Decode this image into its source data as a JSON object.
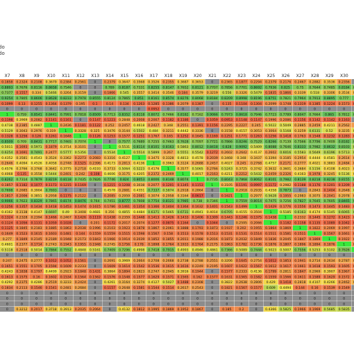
{
  "sheet": {
    "top_labels": [
      "do",
      "do"
    ]
  },
  "chart_data": {
    "type": "heatmap",
    "title": "",
    "columns": [
      "X7",
      "X8",
      "X9",
      "X10",
      "X11",
      "X12",
      "X13",
      "X14",
      "X15",
      "X16",
      "X17",
      "X18",
      "X19",
      "X20",
      "X21",
      "X22",
      "X23",
      "X24",
      "X25",
      "X26",
      "X27",
      "X28",
      "X29",
      "X30",
      "X31"
    ],
    "color_scale": {
      "high": "#63be5a",
      "mid": "#f3e04a",
      "low": "#f08a4b",
      "lowest": "#e8473e",
      "diagonal": "#39e83a",
      "na": "#8c8c8c"
    },
    "rows": [
      [
        0.1858,
        0.2324,
        0.2108,
        0.3679,
        0.2384,
        0.2561,
        0.0,
        0.2379,
        0.3647,
        0.3568,
        0.3526,
        0.2355,
        0.3687,
        0.3653,
        0.0,
        0.2365,
        0.1877,
        0.2294,
        0.2379,
        0.2176,
        0.2467,
        0.2882,
        0.3536,
        0.2356,
        0.0
      ],
      [
        0.8893,
        0.7676,
        0.8116,
        0.8658,
        0.7546,
        0.0,
        0.0,
        0.789,
        0.8187,
        0.7331,
        0.8255,
        0.8147,
        0.7652,
        0.8121,
        0.7707,
        0.7856,
        0.7701,
        0.8692,
        0.7936,
        0.825,
        0.75,
        0.7644,
        0.7485,
        0.8184,
        0.7628
      ],
      [
        0.7377,
        0.1557,
        0.334,
        0.5466,
        0.3264,
        0.3159,
        0.0,
        0.1866,
        0.545,
        0.3557,
        0.3414,
        0.3546,
        0.184,
        0.3579,
        0.3219,
        0.556,
        0.3326,
        0.5479,
        0.1835,
        0.1866,
        0.3339,
        0.518,
        0.3306,
        0.3534,
        0.3465
      ],
      [
        0.9254,
        0.7805,
        0.8606,
        0.8628,
        0.8233,
        0.7978,
        0.8555,
        0.8124,
        0.7865,
        0.851,
        0.8161,
        0.8574,
        0.8276,
        0.8068,
        0.8184,
        0.8209,
        0.8998,
        0.8196,
        0.8751,
        0.7821,
        0.7964,
        0.7913,
        0.8895,
        0.777,
        0.907
      ],
      [
        0.1099,
        0.13,
        0.1255,
        0.1364,
        0.1379,
        0.195,
        0.1,
        0.14,
        0.134,
        0.1263,
        0.1285,
        0.1386,
        0.2079,
        0.1387,
        0.0,
        0.135,
        0.1104,
        0.1304,
        0.2099,
        0.1748,
        0.1319,
        0.1385,
        0.1224,
        0.1573,
        0.1016
      ],
      [
        0.0,
        0.0,
        0.0,
        0.0,
        0.0,
        0.0,
        0.0,
        0.0,
        0.0,
        0.0,
        0.0952,
        0.0,
        0.0,
        0.0,
        0.0,
        0.0,
        0.0,
        0.0,
        0.0,
        0.0,
        0.0,
        0.0,
        0.0,
        0.0,
        0.0
      ],
      [
        1,
        0.759,
        0.8541,
        0.8441,
        0.7991,
        0.7818,
        0.8509,
        0.7713,
        0.8352,
        0.8118,
        0.8072,
        0.7466,
        0.8182,
        0.7162,
        0.9066,
        0.7973,
        0.8618,
        0.7946,
        0.7723,
        0.7789,
        0.8047,
        0.7664,
        0.865,
        0.7812,
        0.8062
      ],
      [
        0.1198,
        0.3969,
        0.2082,
        0.1141,
        0.1161,
        0.0,
        0.1147,
        0.1223,
        0.2848,
        0.2008,
        0.2007,
        0.1182,
        0.1186,
        0.0,
        0.1059,
        0.0953,
        0.1148,
        0.1147,
        0.1996,
        0.2086,
        0.1156,
        0.1142,
        0.1142,
        0.1163,
        0.0
      ],
      [
        0.4738,
        0.2385,
        0.4887,
        1,
        0.2436,
        0.1181,
        0.1122,
        0.252,
        0.2457,
        0.4618,
        0.2427,
        0.348,
        0.2551,
        0.1391,
        0.1156,
        0.2295,
        0.2227,
        0.245,
        0.5022,
        0.5049,
        0.2885,
        0.2459,
        0.4211,
        0.2562,
        0.246
      ],
      [
        0.5129,
        0.3043,
        0.2976,
        0.319,
        1,
        0.3328,
        0.325,
        0.3476,
        0.3144,
        0.5502,
        0.484,
        0.3211,
        0.4442,
        0.3336,
        0.0,
        0.3158,
        0.4157,
        0.3053,
        0.3064,
        0.5168,
        0.3259,
        0.6131,
        0.52,
        0.3235,
        0.4992
      ],
      [
        0.1328,
        0.1256,
        0.126,
        0.1261,
        0.1648,
        1,
        0.1126,
        0.1253,
        0.1577,
        0.1251,
        0.1767,
        0.165,
        0.1252,
        0.1645,
        0.1169,
        0.1251,
        0.1771,
        0.1263,
        0.1256,
        0.1418,
        0.1763,
        0.1548,
        0.1232,
        0.1283,
        0.1645
      ],
      [
        0.8509,
        0.709,
        0.8431,
        0.7717,
        0.7465,
        0.7074,
        1,
        0.0,
        0.7577,
        0.7689,
        0.7255,
        0.7463,
        0.7628,
        0.7097,
        0.7721,
        0.7866,
        0.8246,
        0.7529,
        0.8266,
        0.7139,
        0.7566,
        0.7796,
        0.7409,
        0.8182,
        0.7731
      ],
      [
        0.5011,
        0.1693,
        0.5971,
        0.1879,
        0.3714,
        0.3101,
        0.0,
        1,
        0.5531,
        0.8114,
        0.8101,
        0.8163,
        0.5863,
        0.8012,
        0.8418,
        0.828,
        0.9092,
        0.5409,
        0.8088,
        0.7646,
        0.8333,
        0.7982,
        0.8632,
        0.8103,
        0.6499
      ],
      [
        0.6254,
        0.1691,
        0.7491,
        0.2477,
        0.5777,
        0.5356,
        0.0,
        0.5534,
        1,
        0.5514,
        0.5899,
        0.267,
        0.5551,
        0.5542,
        0.1272,
        0.2602,
        0.2642,
        0.4137,
        0.2602,
        0.6016,
        0.5583,
        0.5649,
        0.6196,
        0.5713,
        0.6034
      ],
      [
        0.4352,
        0.3581,
        0.4543,
        0.3524,
        0.3362,
        0.2273,
        0.2083,
        0.3316,
        0.4127,
        1,
        0.3475,
        0.3328,
        0.4813,
        0.4578,
        0.2039,
        0.3468,
        0.348,
        0.3437,
        0.3394,
        0.3185,
        0.2954,
        0.4444,
        0.4581,
        0.2614,
        0.2635
      ],
      [
        0.2646,
        0.4094,
        0.4526,
        0.4058,
        0.2748,
        0.1525,
        0.2396,
        0.4173,
        0.2813,
        0.4136,
        1,
        0.3963,
        0.3124,
        0.2688,
        0.2457,
        0.4027,
        0.245,
        0.2768,
        0.4757,
        0.2171,
        0.2777,
        0.4021,
        0.3883,
        0.2484,
        0.2531
      ],
      [
        0.4576,
        0.3766,
        0.3768,
        0.3642,
        0.3775,
        0.2718,
        0.4193,
        0.3733,
        0.5064,
        0.5223,
        0.4176,
        1,
        0.3577,
        0.5065,
        0.2766,
        0.5243,
        0.3725,
        0.3742,
        0.3632,
        0.3601,
        0.3684,
        0.5156,
        0.4108,
        0.4023,
        0.3561
      ],
      [
        0.4068,
        0.135,
        0.3558,
        0.5444,
        0.2401,
        0.242,
        0.108,
        0.4606,
        0.3175,
        0.4205,
        0.2372,
        0.2469,
        1,
        0.4017,
        0.2163,
        0.4211,
        0.2212,
        0.5432,
        0.2459,
        0.2326,
        0.4163,
        0.1978,
        0.3245,
        0.5136,
        0.4158
      ],
      [
        0.8262,
        0.7314,
        0.7879,
        0.8219,
        0.8118,
        0.7435,
        0.7826,
        0.7746,
        0.824,
        0.8053,
        0.8006,
        0.8148,
        0.8074,
        1,
        0.7735,
        0.8043,
        0.7868,
        0.8062,
        0.8101,
        0.7982,
        0.8139,
        0.8218,
        0.8238,
        0.8155,
        0.7924
      ],
      [
        0.1857,
        0.1182,
        0.1077,
        0.1173,
        0.1215,
        0.1169,
        0.0,
        0.1215,
        0.1208,
        0.3038,
        0.2077,
        0.1201,
        0.1345,
        0.1153,
        1,
        0.3105,
        0.1191,
        0.0997,
        0.1172,
        0.2982,
        0.1188,
        0.1176,
        0.1201,
        0.1209,
        0.1225
      ],
      [
        0.7698,
        0.2685,
        0.3904,
        0.7693,
        0.0,
        0.0,
        0.0,
        0.4578,
        0.2881,
        0.4351,
        0.7337,
        0.5874,
        0.2918,
        0.2864,
        0.0,
        1,
        0.2918,
        0.2935,
        0.4358,
        0.7873,
        0.0,
        0.2843,
        0.1404,
        0.2648,
        0.5724
      ],
      [
        0.1817,
        0.2006,
        0.3851,
        0.2958,
        0.1175,
        0.2122,
        0.0,
        0.2085,
        0.2959,
        0.2081,
        0.3074,
        0.2958,
        0.3164,
        0.0617,
        0.0,
        0.1621,
        1,
        0.2977,
        0.5628,
        0.1955,
        0.2983,
        0.3075,
        0.2041,
        0.2978,
        0.2955
      ],
      [
        0.9066,
        0.7623,
        0.8329,
        0.7865,
        0.8174,
        0.8476,
        0.764,
        0.7451,
        0.8777,
        0.7608,
        0.7754,
        0.8121,
        0.7985,
        0.738,
        0.7346,
        1,
        0.7559,
        0.8014,
        0.7475,
        0.7256,
        0.7827,
        0.7645,
        0.7605,
        0.8465,
        0.8114
      ],
      [
        0.1256,
        0.1357,
        0.1434,
        0.1418,
        0.1453,
        0.1474,
        0.1615,
        0.1786,
        0.1461,
        0.1354,
        0.1366,
        0.1404,
        0.1364,
        0.1632,
        0.1401,
        0.1543,
        0.1499,
        1,
        0.1429,
        0.1776,
        0.1556,
        0.1473,
        0.1445,
        0.1483,
        0.1403
      ],
      [
        0.4162,
        0.3138,
        0.4147,
        0.6697,
        0.49,
        0.3408,
        0.4681,
        0.356,
        0.4855,
        0.4484,
        0.6371,
        0.5465,
        0.6731,
        0.4941,
        0.4014,
        0.6705,
        0.4155,
        0.3504,
        1,
        0.5185,
        0.6163,
        0.4174,
        0.5145,
        0.6065,
        0.6474
      ],
      [
        0.1324,
        0.2328,
        0.2394,
        0.1466,
        0.2467,
        0.1426,
        0.1119,
        0.1438,
        0.2359,
        0.1448,
        0.1413,
        0.1426,
        0.1433,
        0.1406,
        0.1309,
        0.1443,
        0.1246,
        0.1375,
        0.1438,
        1,
        0.2332,
        0.1445,
        0.1272,
        0.1423,
        0.1422
      ],
      [
        0.1124,
        0.1056,
        0.1131,
        0.1059,
        0.1028,
        0.0,
        0.201,
        0.1172,
        0.2017,
        0.2074,
        0.1277,
        0.0875,
        0.1164,
        0.0,
        0.1044,
        0.0,
        0.2595,
        0.2066,
        1,
        0.1182,
        0.1158,
        0.1135,
        0.1089,
        0.1042,
        0.1023
      ],
      [
        0.1125,
        0.1845,
        0.2183,
        0.1885,
        0.1863,
        0.2038,
        0.1996,
        0.2103,
        0.1923,
        0.1878,
        0.1867,
        0.2061,
        0.1888,
        0.1793,
        0.1873,
        0.1937,
        0.202,
        0.1955,
        0.1864,
        0.1869,
        1,
        0.1822,
        0.2069,
        0.1997,
        0.1974
      ],
      [
        0.1649,
        0.1523,
        0.1615,
        0.1603,
        0.1481,
        0.144,
        0.1559,
        0.1559,
        0.1515,
        0.1598,
        0.1567,
        0.158,
        0.1513,
        0.1578,
        0.1513,
        0.1531,
        0.1531,
        0.1514,
        0.1511,
        0.1581,
        0.1511,
        1,
        0.1567,
        0.1661,
        0.1548
      ],
      [
        0.277,
        0.1849,
        0.2145,
        0.2189,
        0.1948,
        0.2173,
        0.1843,
        0.1966,
        0.1914,
        0.2039,
        0.1852,
        0.1855,
        0.2011,
        0.1988,
        0.2016,
        0.1873,
        0.2032,
        0.1849,
        0.1836,
        0.2045,
        0.1847,
        0.1869,
        1,
        0.1922,
        0.2009
      ],
      [
        0.4601,
        0.2377,
        0.1714,
        0.2743,
        0.1943,
        0.1955,
        0.1948,
        0.2745,
        0.1756,
        0.178,
        0.1898,
        0.1764,
        0.1933,
        0.1764,
        0.2175,
        0.1863,
        0.1782,
        0.1736,
        0.1876,
        0.1807,
        0.1896,
        0.1894,
        0.1876,
        1,
        0.1967
      ],
      [
        0.5118,
        0.2518,
        0.5014,
        0.7864,
        0.7552,
        0.4848,
        0.5161,
        0.7409,
        0.7296,
        0.4998,
        0.7418,
        0.7915,
        0.4993,
        0.4946,
        0.4861,
        0.7366,
        0.5089,
        0.7444,
        0.5023,
        0.5007,
        0.7556,
        0.5253,
        0.5102,
        0.7626,
        1
      ],
      [
        0.0,
        0.0,
        0.0,
        0.0,
        0.0,
        0.0,
        0.0,
        0.0,
        0.0,
        0.0,
        0.0,
        0.0,
        0.0,
        0.0,
        0.0,
        0.0,
        0.0,
        0.0,
        0.0,
        0.0,
        0.0,
        0.0,
        0.0,
        0.0,
        0.0
      ],
      [
        0.247,
        0.2475,
        0.2777,
        0.1012,
        0.1052,
        0.1561,
        0.0,
        0.2691,
        0.3969,
        0.2664,
        0.2708,
        0.2668,
        0.2738,
        0.2788,
        0.2551,
        0.3206,
        0.1645,
        0.2754,
        0.1012,
        0.1853,
        0.1941,
        0.2714,
        0.2634,
        0.2787,
        0.2704
      ],
      [
        0.1651,
        0.1551,
        0.1705,
        0.1594,
        0.1609,
        0.2233,
        0.0,
        0.1609,
        0.1614,
        0.1542,
        0.1536,
        0.1615,
        0.1616,
        0.2249,
        0.2195,
        0.1607,
        0.1622,
        0.1567,
        0.1612,
        0.1617,
        0.1661,
        0.1618,
        0.1593,
        0.1605,
        0.1643
      ],
      [
        0.4243,
        0.1838,
        0.1797,
        0.4499,
        0.2923,
        0.1848,
        0.1431,
        0.3864,
        0.1894,
        0.2823,
        0.2747,
        0.2945,
        0.3916,
        0.1944,
        0.0,
        0.1577,
        0.2333,
        0.4136,
        0.1799,
        0.2811,
        0.1847,
        0.2969,
        0.3907,
        0.1967,
        0.1789
      ],
      [
        0.1613,
        0.1575,
        0.16,
        0.1602,
        0.1534,
        0.1564,
        0.1562,
        0.1576,
        0.1548,
        0.1577,
        0.1629,
        0.1571,
        0.1565,
        0.162,
        0.1577,
        0.1631,
        0.1565,
        0.1582,
        0.1559,
        0.1566,
        0.1611,
        0.1589,
        0.1629,
        0.1572,
        0.1584
      ],
      [
        0.4292,
        0.2375,
        0.4286,
        0.2519,
        0.3233,
        0.2424,
        0.0,
        0.4261,
        0.3164,
        0.3274,
        0.4127,
        0.5027,
        0.1488,
        0.2308,
        0.0,
        0.3822,
        0.2638,
        0.2806,
        0.429,
        0.1418,
        0.2818,
        0.4107,
        0.4266,
        0.2462,
        0.3142
      ],
      [
        0.1834,
        0.2113,
        0.1546,
        0.1541,
        0.2481,
        0.2684,
        0.0,
        0.1157,
        0.2648,
        0.1581,
        0.1544,
        0.1514,
        0.2617,
        0.2543,
        0.0,
        0.1821,
        0.1567,
        0.1577,
        0.609,
        0.4494,
        0.144,
        0.16,
        0.1539,
        0.1549,
        0.0
      ],
      [
        0.0,
        0.0,
        0.0,
        0.0,
        0.0,
        0.0,
        0.0,
        0.0,
        0.0,
        0.0,
        0.0,
        0.0,
        0.0,
        0.0,
        0.0,
        0.0,
        0.0,
        0.0,
        0.0,
        0.0,
        0.0,
        0.0,
        0.0,
        0.0,
        0.0
      ],
      [
        0.0,
        0.0,
        0.0,
        0.0,
        0.0,
        0.0,
        0.0,
        0.0,
        0.0,
        0.0,
        0.0,
        0.0,
        0.0,
        0.0,
        0.0,
        0.0,
        0.0,
        0.0,
        0.0,
        0.0,
        0.0,
        0.0,
        0.0,
        0.0,
        0.0
      ],
      [
        0.0,
        0.0,
        0.0,
        0.0,
        0.0,
        0.0,
        0.0,
        0.0,
        0.0,
        0.0,
        0.0,
        0.0,
        0.0,
        0.0,
        0.0,
        0.0,
        0.0,
        0.0,
        0.0,
        0.0,
        0.0,
        0.0,
        0.0,
        0.0,
        0.0
      ],
      [
        0.0,
        0.3212,
        0.2017,
        0.3718,
        0.3913,
        0.2035,
        0.2064,
        0.0,
        0.4132,
        0.1812,
        0.1995,
        0.1869,
        0.1952,
        0.1867,
        0.0,
        0.185,
        0.2,
        0.0,
        0.4366,
        0.5825,
        0.1966,
        0.1969,
        0.5685,
        0.5835,
        0.0
      ]
    ]
  }
}
